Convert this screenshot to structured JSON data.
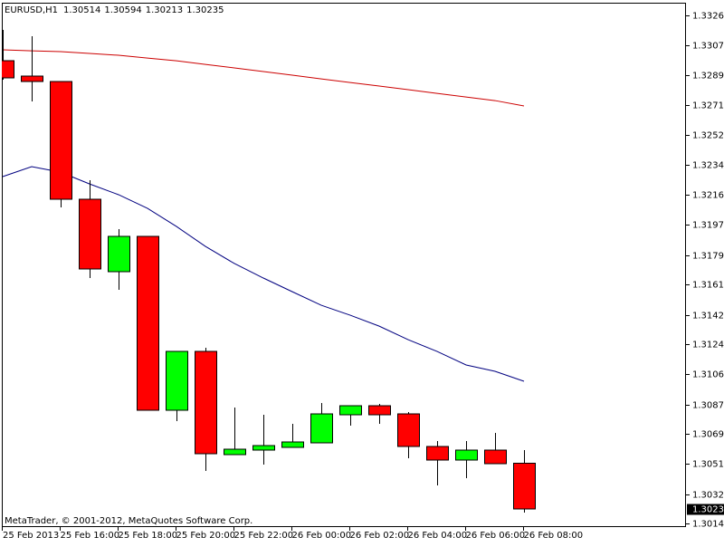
{
  "chart_data": {
    "type": "candlestick",
    "title": "EURUSD,H1",
    "footer": "MetaTrader, © 2001-2012, MetaQuotes Software Corp.",
    "categories": [
      "25 Feb 2013",
      null,
      "25 Feb 16:00",
      null,
      "25 Feb 18:00",
      null,
      "25 Feb 20:00",
      null,
      "25 Feb 22:00",
      null,
      "26 Feb 00:00",
      null,
      "26 Feb 02:00",
      null,
      "26 Feb 04:00",
      null,
      "26 Feb 06:00",
      null,
      "26 Feb 08:00"
    ],
    "open": [
      1.32982,
      1.32888,
      1.32855,
      1.32133,
      1.31689,
      1.31905,
      1.30839,
      1.312,
      1.30567,
      1.30595,
      1.30611,
      1.30639,
      1.30811,
      1.30867,
      1.30817,
      1.30617,
      1.30533,
      1.30595,
      1.30514
    ],
    "high": [
      1.33171,
      1.33132,
      1.32855,
      1.32249,
      1.3195,
      1.31905,
      1.312,
      1.31222,
      1.30856,
      1.30811,
      1.30756,
      1.30883,
      1.30867,
      1.30878,
      1.30828,
      1.3065,
      1.3065,
      1.307,
      1.30594
    ],
    "low": [
      1.32866,
      1.32732,
      1.32083,
      1.3165,
      1.31577,
      1.30839,
      1.30772,
      1.30467,
      1.30567,
      1.30506,
      1.30611,
      1.30639,
      1.30745,
      1.30756,
      1.30545,
      1.30378,
      1.30422,
      1.30511,
      1.30213
    ],
    "close": [
      1.32877,
      1.32855,
      1.32133,
      1.31705,
      1.31905,
      1.30839,
      1.312,
      1.30572,
      1.306,
      1.30622,
      1.30645,
      1.30817,
      1.30867,
      1.30811,
      1.30617,
      1.30533,
      1.30595,
      1.30511,
      1.30235
    ],
    "up_color": "#00ff00",
    "down_color": "#ff0000",
    "lines": [
      {
        "color": "#cc0000",
        "values": [
          1.33049,
          1.33043,
          1.33038,
          1.33027,
          1.33016,
          1.32999,
          1.32982,
          1.3296,
          1.32938,
          1.32916,
          1.32894,
          1.32871,
          1.32849,
          1.32827,
          1.32805,
          1.32782,
          1.3276,
          1.32738,
          1.32705
        ]
      },
      {
        "color": "#000080",
        "values": [
          1.32272,
          1.32333,
          1.32299,
          1.32227,
          1.32161,
          1.32077,
          1.31966,
          1.31844,
          1.31739,
          1.3165,
          1.31566,
          1.31483,
          1.31422,
          1.31355,
          1.31272,
          1.312,
          1.31117,
          1.31078,
          1.31017
        ]
      }
    ],
    "ylim": [
      1.30123,
      1.33327
    ],
    "yticks": [
      {
        "value": 1.3326,
        "label": "1.33260"
      },
      1.33075,
      1.32895,
      {
        "value": 1.3271,
        "label": "1.32710"
      },
      1.32525,
      1.32345,
      {
        "value": 1.3216,
        "label": "1.32160"
      },
      1.31975,
      {
        "value": 1.3179,
        "label": "1.31790"
      },
      {
        "value": 1.3161,
        "label": "1.31610"
      },
      1.31425,
      1.31245,
      {
        "value": 1.3106,
        "label": "1.31060"
      },
      1.30875,
      1.30695,
      {
        "value": 1.3051,
        "label": "1.30510"
      },
      1.30325,
      1.30145
    ]
  }
}
